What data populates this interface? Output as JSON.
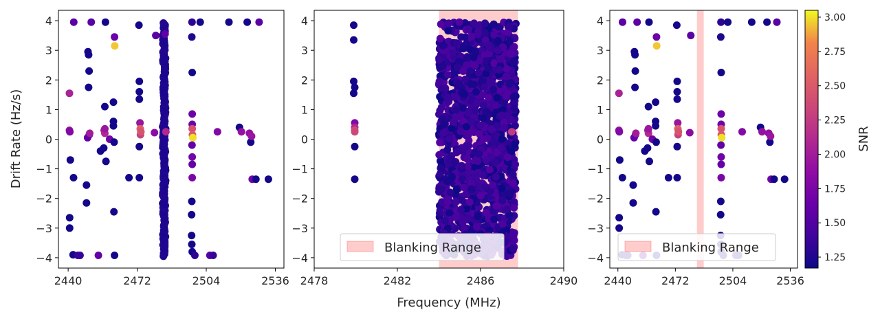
{
  "chart_data": {
    "type": "scatter",
    "shared_xlabel": "Frequency (MHz)",
    "shared_ylabel": "Drift Rate (Hz/s)",
    "colorbar": {
      "label": "SNR",
      "range": [
        1.17,
        3.05
      ],
      "ticks": [
        1.25,
        1.5,
        1.75,
        2.0,
        2.25,
        2.5,
        2.75,
        3.0
      ],
      "tick_labels": [
        "1.25",
        "1.50",
        "1.75",
        "2.00",
        "2.25",
        "2.50",
        "2.75",
        "3.00"
      ],
      "colormap": "plasma"
    },
    "panels": [
      {
        "id": "full-band",
        "xlim": [
          2435.5,
          2540
        ],
        "ylim": [
          -4.35,
          4.35
        ],
        "xticks": [
          2440,
          2472,
          2504,
          2536
        ],
        "yticks": [
          -4,
          -3,
          -2,
          -1,
          0,
          1,
          2,
          3,
          4
        ],
        "vertical_cluster": {
          "x": 2484.5,
          "y_range": [
            -3.95,
            3.95
          ],
          "snr": 1.22
        },
        "points": [
          [
            2440.6,
            0.3,
            1.9
          ],
          [
            2440.8,
            0.25,
            1.8
          ],
          [
            2440.6,
            1.55,
            2.05
          ],
          [
            2441,
            -0.7,
            1.2
          ],
          [
            2440.7,
            -2.65,
            1.2
          ],
          [
            2440.7,
            -3.0,
            1.2
          ],
          [
            2442.5,
            -1.3,
            1.2
          ],
          [
            2442.3,
            -3.9,
            1.2
          ],
          [
            2442.6,
            3.95,
            1.55
          ],
          [
            2444.5,
            -3.92,
            1.35
          ],
          [
            2445.5,
            -3.92,
            1.35
          ],
          [
            2448.5,
            -2.15,
            1.2
          ],
          [
            2448.5,
            -1.55,
            1.2
          ],
          [
            2449.5,
            2.85,
            1.2
          ],
          [
            2449.2,
            2.95,
            1.2
          ],
          [
            2449.7,
            2.3,
            1.2
          ],
          [
            2449.5,
            1.75,
            1.2
          ],
          [
            2449.8,
            0.15,
            1.8
          ],
          [
            2449,
            0.05,
            1.6
          ],
          [
            2450,
            0.2,
            2.0
          ],
          [
            2450.7,
            3.95,
            1.55
          ],
          [
            2454,
            -3.92,
            1.6
          ],
          [
            2455,
            -0.4,
            1.2
          ],
          [
            2456.5,
            -0.3,
            1.2
          ],
          [
            2456.7,
            0.3,
            2.05
          ],
          [
            2457,
            0.2,
            2.1
          ],
          [
            2457.5,
            -0.75,
            1.2
          ],
          [
            2457,
            0.35,
            1.95
          ],
          [
            2457,
            1.1,
            1.2
          ],
          [
            2457.3,
            3.95,
            1.2
          ],
          [
            2459.2,
            0.0,
            1.7
          ],
          [
            2461.5,
            -3.92,
            1.2
          ],
          [
            2461.2,
            -2.45,
            1.2
          ],
          [
            2461.3,
            -0.1,
            1.2
          ],
          [
            2461,
            0.45,
            1.2
          ],
          [
            2461,
            0.6,
            1.2
          ],
          [
            2461,
            1.25,
            1.2
          ],
          [
            2461.5,
            3.45,
            1.65
          ],
          [
            2461.6,
            3.15,
            2.95
          ],
          [
            2468.2,
            -1.3,
            1.2
          ],
          [
            2473,
            1.95,
            1.2
          ],
          [
            2473,
            1.6,
            1.2
          ],
          [
            2473,
            1.35,
            1.2
          ],
          [
            2473.3,
            0.55,
            1.95
          ],
          [
            2473.4,
            0.35,
            2.55
          ],
          [
            2473.5,
            0.15,
            2.3
          ],
          [
            2473.7,
            0.25,
            2.45
          ],
          [
            2473,
            -0.25,
            1.2
          ],
          [
            2473,
            -1.3,
            1.2
          ],
          [
            2472.8,
            3.85,
            1.2
          ],
          [
            2480,
            0.22,
            1.85
          ],
          [
            2480.6,
            3.5,
            1.55
          ],
          [
            2497.4,
            3.95,
            1.3
          ],
          [
            2497.3,
            3.45,
            1.25
          ],
          [
            2497.5,
            2.25,
            1.2
          ],
          [
            2497.5,
            0.85,
            1.65
          ],
          [
            2497.5,
            0.5,
            1.7
          ],
          [
            2497.5,
            0.35,
            2.45
          ],
          [
            2497.6,
            0.15,
            2.5
          ],
          [
            2497.8,
            0.05,
            3.0
          ],
          [
            2497.4,
            -0.2,
            1.6
          ],
          [
            2497.5,
            -0.6,
            1.7
          ],
          [
            2497.5,
            -0.85,
            1.6
          ],
          [
            2497.5,
            -1.3,
            1.75
          ],
          [
            2497.3,
            -2.1,
            1.2
          ],
          [
            2497.2,
            -2.55,
            1.2
          ],
          [
            2497.2,
            -3.25,
            1.2
          ],
          [
            2497.3,
            -3.55,
            1.2
          ],
          [
            2497.5,
            -3.8,
            1.2
          ],
          [
            2498.7,
            -3.92,
            1.3
          ],
          [
            2501.2,
            3.95,
            1.2
          ],
          [
            2505.7,
            -3.92,
            1.55
          ],
          [
            2507.2,
            -3.92,
            1.35
          ],
          [
            2509.2,
            0.25,
            1.8
          ],
          [
            2514.5,
            3.95,
            1.2
          ],
          [
            2519.4,
            0.4,
            1.2
          ],
          [
            2520.3,
            0.25,
            1.9
          ],
          [
            2524,
            0.2,
            1.9
          ],
          [
            2524.6,
            -0.1,
            1.2
          ],
          [
            2525,
            0.1,
            1.95
          ],
          [
            2525.3,
            -1.35,
            1.7
          ],
          [
            2523,
            3.95,
            1.2
          ],
          [
            2527,
            -1.35,
            1.2
          ],
          [
            2528.5,
            3.95,
            1.55
          ],
          [
            2532.8,
            -1.35,
            1.2
          ]
        ]
      },
      {
        "id": "blanking-zoom",
        "xlim": [
          2478,
          2490
        ],
        "ylim": [
          -4.35,
          4.35
        ],
        "xticks": [
          2478,
          2482,
          2486,
          2490
        ],
        "yticks": [
          -4,
          -3,
          -2,
          -1,
          0,
          1,
          2,
          3,
          4
        ],
        "blanking_range": [
          2484.0,
          2487.8
        ],
        "dense_band": {
          "x_range": [
            2484.0,
            2487.7
          ],
          "y_range": [
            -3.95,
            3.95
          ]
        },
        "points": [
          [
            2479.9,
            3.85,
            1.2
          ],
          [
            2479.9,
            3.35,
            1.2
          ],
          [
            2479.9,
            1.95,
            1.2
          ],
          [
            2479.95,
            1.75,
            1.2
          ],
          [
            2479.9,
            1.55,
            1.2
          ],
          [
            2479.95,
            0.55,
            1.8
          ],
          [
            2479.95,
            0.4,
            2.1
          ],
          [
            2479.95,
            0.3,
            2.4
          ],
          [
            2479.95,
            0.25,
            2.35
          ],
          [
            2479.95,
            -0.25,
            1.2
          ],
          [
            2479.95,
            -1.35,
            1.2
          ],
          [
            2487.5,
            0.25,
            2.25
          ]
        ],
        "legend": {
          "label": "Blanking Range",
          "placement": "lower-left"
        }
      },
      {
        "id": "blanked-result",
        "xlim": [
          2435.5,
          2540
        ],
        "ylim": [
          -4.35,
          4.35
        ],
        "xticks": [
          2440,
          2472,
          2504,
          2536
        ],
        "yticks": [
          -4,
          -3,
          -2,
          -1,
          0,
          1,
          2,
          3,
          4
        ],
        "blanking_range": [
          2484.0,
          2487.8
        ],
        "legend": {
          "label": "Blanking Range",
          "placement": "lower-left"
        }
      }
    ],
    "xtick_labels_panel_1": [
      "2440",
      "2472",
      "2504",
      "2536"
    ],
    "xtick_labels_panel_2": [
      "2478",
      "2482",
      "2486",
      "2490"
    ],
    "ytick_labels": [
      "−4",
      "−3",
      "−2",
      "−1",
      "0",
      "1",
      "2",
      "3",
      "4"
    ]
  }
}
